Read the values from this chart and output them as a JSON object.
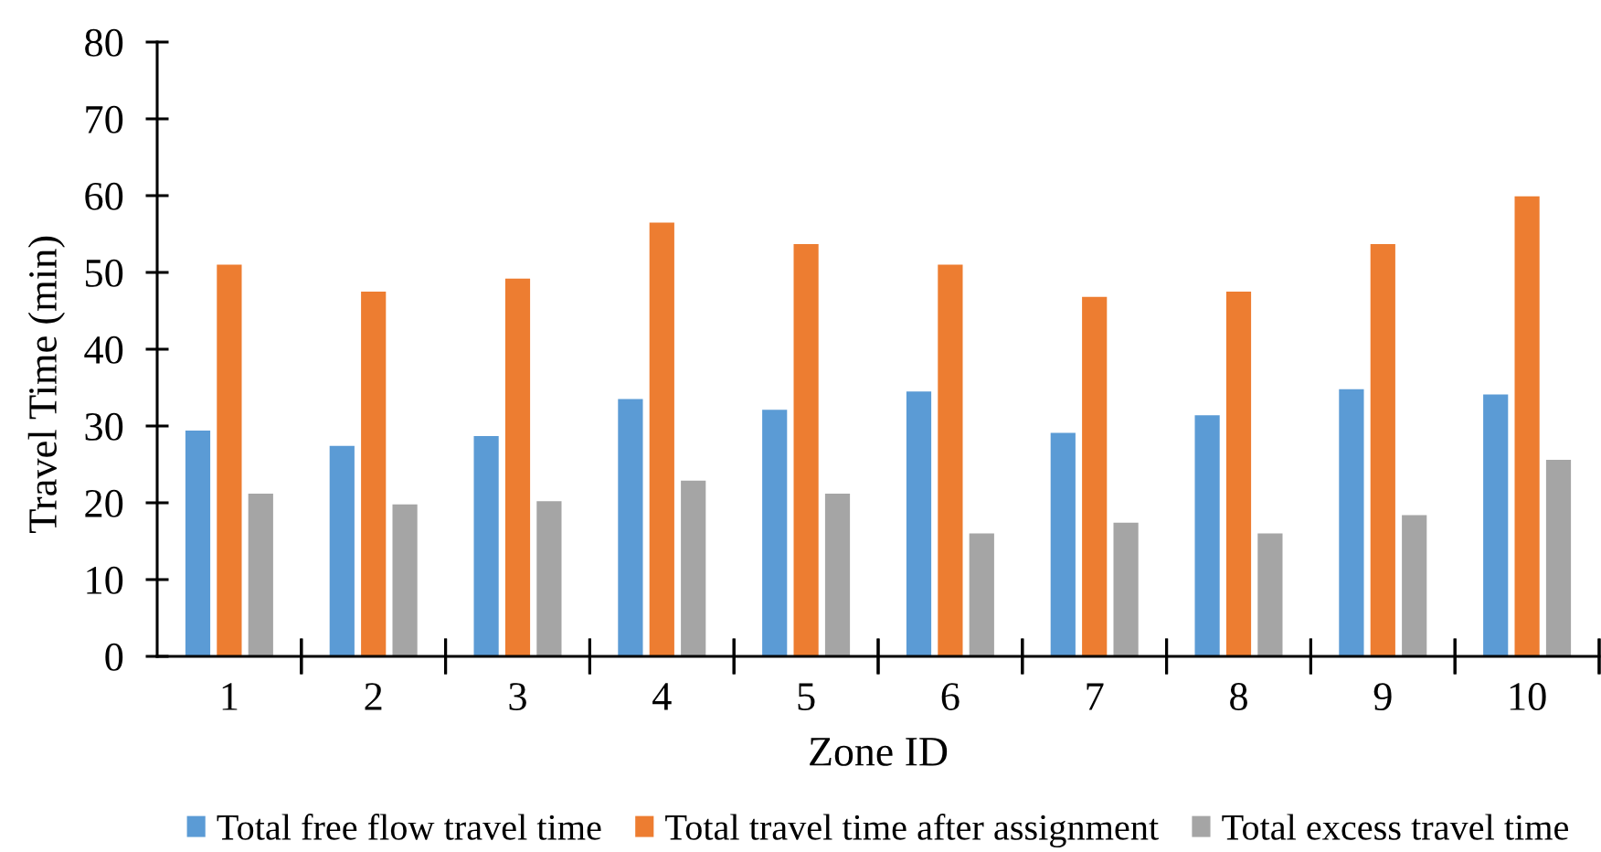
{
  "chart_data": {
    "type": "bar",
    "xlabel": "Zone ID",
    "ylabel": "Travel Time (min)",
    "categories": [
      "1",
      "2",
      "3",
      "4",
      "5",
      "6",
      "7",
      "8",
      "9",
      "10"
    ],
    "series": [
      {
        "name": "Total free flow travel time",
        "color": "#5b9bd5",
        "values": [
          29.5,
          27.5,
          28.8,
          33.6,
          32.2,
          34.6,
          29.2,
          31.5,
          34.9,
          34.2
        ]
      },
      {
        "name": "Total travel time after assignment",
        "color": "#ed7d31",
        "values": [
          51.1,
          47.6,
          49.3,
          56.6,
          53.8,
          51.1,
          46.9,
          47.6,
          53.8,
          60.0
        ]
      },
      {
        "name": "Total excess travel time",
        "color": "#a5a5a5",
        "values": [
          21.3,
          19.9,
          20.3,
          23.0,
          21.3,
          16.1,
          17.5,
          16.1,
          18.5,
          25.7
        ]
      }
    ],
    "ylim": [
      0,
      80
    ],
    "yticks": [
      0,
      10,
      20,
      30,
      40,
      50,
      60,
      70,
      80
    ],
    "grid": false,
    "legend": "bottom"
  }
}
